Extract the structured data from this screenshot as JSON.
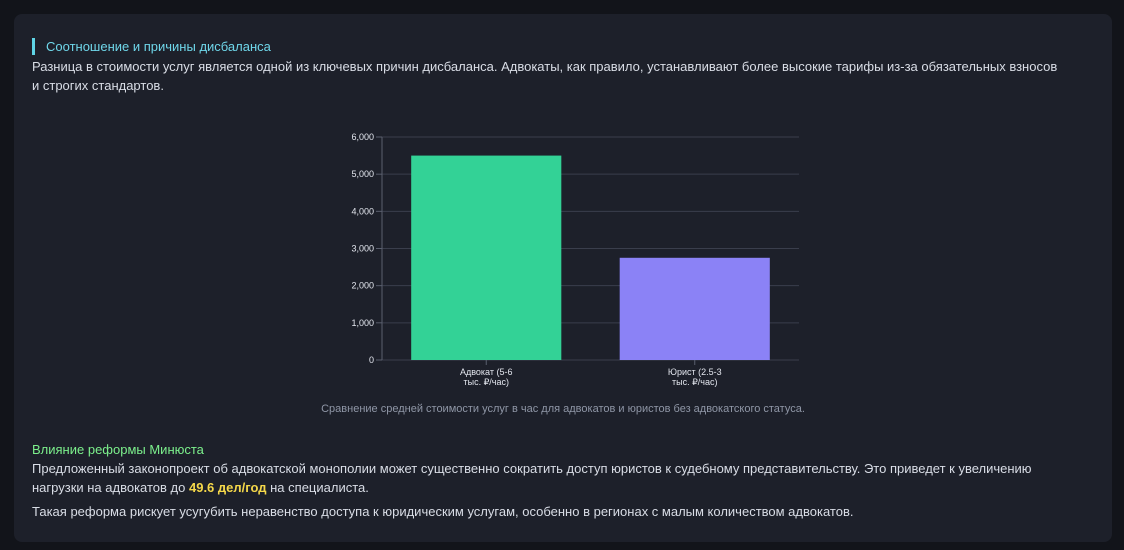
{
  "section": {
    "title": "Соотношение и причины дисбаланса",
    "intro": "Разница в стоимости услуг является одной из ключевых причин дисбаланса. Адвокаты, как правило, устанавливают более высокие тарифы из-за обязательных взносов и строгих стандартов."
  },
  "chart_data": {
    "type": "bar",
    "categories": [
      [
        "Адвокат (5-6",
        "тыс. ₽/час)"
      ],
      [
        "Юрист (2.5-3",
        "тыс. ₽/час)"
      ]
    ],
    "values": [
      5500,
      2750
    ],
    "colors": [
      "#33d296",
      "#8b82f6"
    ],
    "ylim": [
      0,
      6000
    ],
    "yticks": [
      "0",
      "1,000",
      "2,000",
      "3,000",
      "4,000",
      "5,000",
      "6,000"
    ],
    "grid": true,
    "legend": "none",
    "caption": "Сравнение средней стоимости услуг в час для адвокатов и юристов без адвокатского статуса."
  },
  "reform": {
    "title": "Влияние реформы Минюста",
    "p1_before": "Предложенный законопроект об адвокатской монополии может существенно сократить доступ юристов к судебному представительству. Это приведет к увеличению нагрузки на адвокатов до ",
    "p1_highlight": "49.6 дел/год",
    "p1_after": " на специалиста.",
    "p2": "Такая реформа рискует усугубить неравенство доступа к юридическим услугам, особенно в регионах с малым количеством адвокатов."
  },
  "colors": {
    "accent_title": "#6fd7ea",
    "accent_reform": "#7cf08c",
    "highlight": "#f5d84a"
  }
}
